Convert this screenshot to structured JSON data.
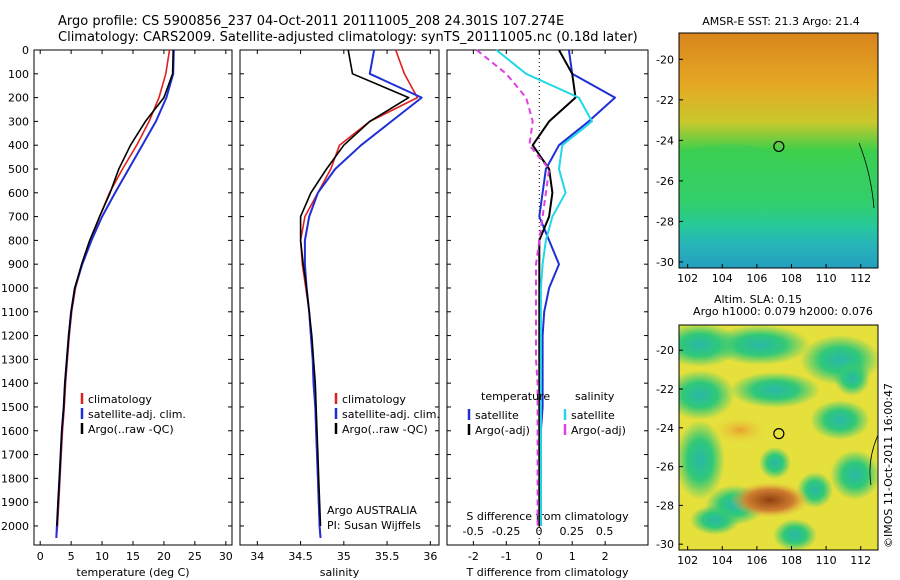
{
  "header": {
    "line1": "Argo profile: CS 5900856_237 04-Oct-2011 20111005_208 24.301S 107.274E",
    "line2": "Climatology: CARS2009. Satellite-adjusted climatology: synTS_20111005.nc (0.18d later)"
  },
  "colors": {
    "climatology": "#e02020",
    "satellite": "#1f2fd6",
    "argo": "#000000",
    "cyan": "#22d8e8",
    "magenta": "#e040e0"
  },
  "chart_data": [
    {
      "type": "line",
      "xlabel": "temperature (deg C)",
      "ylabel": "",
      "xlim": [
        -1,
        31
      ],
      "ylim": [
        0,
        2080
      ],
      "y_reversed": true,
      "xticks": [
        "0",
        "5",
        "10",
        "15",
        "20",
        "25",
        "30"
      ],
      "yticks": [
        "0",
        "100",
        "200",
        "300",
        "400",
        "500",
        "600",
        "700",
        "800",
        "900",
        "1000",
        "1100",
        "1200",
        "1300",
        "1400",
        "1500",
        "1600",
        "1700",
        "1800",
        "1900",
        "2000"
      ],
      "legend": [
        "climatology",
        "satellite-adj. clim.",
        "Argo(..raw -QC)"
      ],
      "series": [
        {
          "name": "climatology",
          "x": [
            20.9,
            20.3,
            19.2,
            17.6,
            15.6,
            13.3,
            11.2,
            9.6,
            8.2,
            6.8,
            5.7,
            5.1,
            4.7,
            4.4,
            4.1,
            3.9,
            3.6,
            3.4,
            3.2,
            3.0,
            2.8,
            2.6
          ],
          "y": [
            0,
            100,
            200,
            300,
            400,
            500,
            600,
            700,
            800,
            900,
            1000,
            1100,
            1200,
            1300,
            1400,
            1500,
            1600,
            1700,
            1800,
            1900,
            2000,
            2050
          ]
        },
        {
          "name": "satellite-adj. clim.",
          "x": [
            21.6,
            21.5,
            20.4,
            18.7,
            16.5,
            14.3,
            12.1,
            10.0,
            8.3,
            6.8,
            5.6,
            5.0,
            4.6,
            4.3,
            4.0,
            3.8,
            3.5,
            3.3,
            3.1,
            2.9,
            2.7,
            2.6
          ],
          "y": [
            0,
            100,
            200,
            300,
            400,
            500,
            600,
            700,
            800,
            900,
            1000,
            1100,
            1200,
            1300,
            1400,
            1500,
            1600,
            1700,
            1800,
            1900,
            2000,
            2050
          ]
        },
        {
          "name": "Argo(..raw -QC)",
          "x": [
            21.5,
            21.4,
            20.0,
            17.0,
            14.6,
            12.7,
            11.3,
            9.6,
            8.0,
            6.7,
            5.6,
            5.0,
            4.6,
            4.3,
            4.0,
            3.8,
            3.5,
            3.3,
            3.1,
            2.9,
            2.7
          ],
          "y": [
            0,
            100,
            200,
            300,
            400,
            500,
            600,
            700,
            800,
            900,
            1000,
            1100,
            1200,
            1300,
            1400,
            1500,
            1600,
            1700,
            1800,
            1900,
            2000
          ]
        }
      ]
    },
    {
      "type": "line",
      "xlabel": "salinity",
      "ylabel": "",
      "xlim": [
        33.8,
        36.1
      ],
      "ylim": [
        0,
        2080
      ],
      "y_reversed": true,
      "xticks": [
        "34",
        "34.5",
        "35",
        "35.5",
        "36"
      ],
      "legend": [
        "climatology",
        "satellite-adj. clim.",
        "Argo(..raw -QC)"
      ],
      "annotation": [
        "Argo AUSTRALIA",
        "PI: Susan Wijffels"
      ],
      "series": [
        {
          "name": "climatology",
          "x": [
            35.6,
            35.7,
            35.85,
            35.3,
            34.95,
            34.85,
            34.7,
            34.55,
            34.5,
            34.52,
            34.56,
            34.6,
            34.62,
            34.64,
            34.65,
            34.67,
            34.68,
            34.69,
            34.7,
            34.71,
            34.72,
            34.73
          ],
          "y": [
            0,
            100,
            200,
            300,
            400,
            500,
            600,
            700,
            800,
            900,
            1000,
            1100,
            1200,
            1300,
            1400,
            1500,
            1600,
            1700,
            1800,
            1900,
            2000,
            2050
          ]
        },
        {
          "name": "satellite-adj. clim.",
          "x": [
            35.35,
            35.3,
            35.9,
            35.55,
            35.2,
            34.9,
            34.7,
            34.6,
            34.55,
            34.55,
            34.57,
            34.6,
            34.62,
            34.64,
            34.65,
            34.67,
            34.68,
            34.69,
            34.7,
            34.71,
            34.72,
            34.73
          ],
          "y": [
            0,
            100,
            200,
            300,
            400,
            500,
            600,
            700,
            800,
            900,
            1000,
            1100,
            1200,
            1300,
            1400,
            1500,
            1600,
            1700,
            1800,
            1900,
            2000,
            2050
          ]
        },
        {
          "name": "Argo(..raw -QC)",
          "x": [
            35.05,
            35.1,
            35.75,
            35.3,
            35.0,
            34.8,
            34.62,
            34.5,
            34.5,
            34.53,
            34.57,
            34.6,
            34.63,
            34.65,
            34.67,
            34.68,
            34.69,
            34.7,
            34.71,
            34.72,
            34.73
          ],
          "y": [
            0,
            100,
            200,
            300,
            400,
            500,
            600,
            700,
            800,
            900,
            1000,
            1100,
            1200,
            1300,
            1400,
            1500,
            1600,
            1700,
            1800,
            1900,
            2000
          ]
        }
      ]
    },
    {
      "type": "line",
      "xlabel": "T difference from climatology",
      "top_axis_label": "S difference from climatology",
      "xlim": [
        -2.8,
        3.3
      ],
      "ylim": [
        0,
        2080
      ],
      "y_reversed": true,
      "xticks": [
        "-2",
        "-1",
        "0",
        "1",
        "2"
      ],
      "top_ticks": [
        "-0.5",
        "-0.25",
        "0",
        "0.25",
        "0.5"
      ],
      "legend_headers": [
        "temperature",
        "salinity"
      ],
      "legend": [
        "satellite",
        "Argo(-adj)",
        "satellite",
        "Argo(-adj)"
      ],
      "series": [
        {
          "name": "temperature satellite",
          "x": [
            0.9,
            1.0,
            2.3,
            1.5,
            0.6,
            0.2,
            0.1,
            0.0,
            0.3,
            0.6,
            0.3,
            0.15,
            0.1,
            0.1,
            0.1,
            0.1,
            0.05,
            0.05,
            0.05,
            0.05,
            0.05
          ],
          "y": [
            0,
            100,
            200,
            300,
            400,
            500,
            600,
            700,
            800,
            900,
            1000,
            1100,
            1200,
            1300,
            1400,
            1500,
            1600,
            1700,
            1800,
            1900,
            2000
          ]
        },
        {
          "name": "temperature Argo(-adj)",
          "x": [
            0.6,
            1.0,
            1.1,
            0.3,
            -0.2,
            0.3,
            0.4,
            0.3,
            0.0,
            0.0,
            0.0,
            0.0,
            0.0,
            0.0,
            0.0,
            0.0,
            0.0,
            0.0,
            0.0,
            0.0,
            0.0
          ],
          "y": [
            0,
            100,
            200,
            300,
            400,
            500,
            600,
            700,
            800,
            900,
            1000,
            1100,
            1200,
            1300,
            1400,
            1500,
            1600,
            1700,
            1800,
            1900,
            2000
          ]
        },
        {
          "name": "salinity satellite",
          "x": [
            -1.3,
            -0.4,
            1.2,
            1.6,
            0.7,
            0.6,
            0.8,
            0.4,
            0.2,
            0.1,
            0.05,
            0.05,
            0.05,
            0.05,
            0.05,
            0.05,
            0.05,
            0.05,
            0.05,
            0.05,
            0.05
          ],
          "y": [
            0,
            100,
            200,
            300,
            400,
            500,
            600,
            700,
            800,
            900,
            1000,
            1100,
            1200,
            1300,
            1400,
            1500,
            1600,
            1700,
            1800,
            1900,
            2000
          ]
        },
        {
          "name": "salinity Argo(-adj)",
          "x": [
            -1.9,
            -1.0,
            -0.4,
            -0.2,
            -0.3,
            0.3,
            0.2,
            0.1,
            0.0,
            -0.1,
            -0.1,
            -0.1,
            -0.1,
            -0.1,
            -0.05,
            -0.05,
            -0.05,
            -0.05,
            -0.05,
            -0.05,
            -0.05
          ],
          "y": [
            0,
            100,
            200,
            300,
            400,
            500,
            600,
            700,
            800,
            900,
            1000,
            1100,
            1200,
            1300,
            1400,
            1500,
            1600,
            1700,
            1800,
            1900,
            2000
          ]
        }
      ]
    },
    {
      "type": "heatmap",
      "title": "AMSR-E SST: 21.3 Argo: 21.4",
      "xticks": [
        "102",
        "104",
        "106",
        "108",
        "110",
        "112"
      ],
      "yticks": [
        "-20",
        "-22",
        "-24",
        "-26",
        "-28",
        "-30"
      ],
      "xlim": [
        101.5,
        113
      ],
      "ylim": [
        -30.3,
        -18.7
      ],
      "marker": {
        "lon": 107.27,
        "lat": -24.3
      }
    },
    {
      "type": "heatmap",
      "title_lines": [
        "Altim. SLA: 0.15",
        "Argo h1000: 0.079 h2000: 0.076"
      ],
      "xticks": [
        "102",
        "104",
        "106",
        "108",
        "110",
        "112"
      ],
      "yticks": [
        "-20",
        "-22",
        "-24",
        "-26",
        "-28",
        "-30"
      ],
      "xlim": [
        101.5,
        113
      ],
      "ylim": [
        -30.3,
        -18.7
      ],
      "marker": {
        "lon": 107.27,
        "lat": -24.3
      }
    }
  ],
  "side_label": "©IMOS 11-Oct-2011 16:00:47"
}
